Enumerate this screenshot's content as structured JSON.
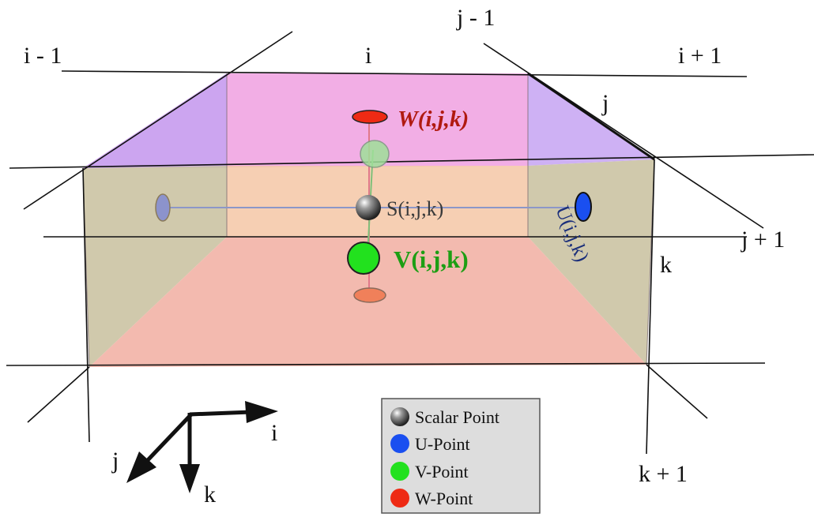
{
  "grid_labels": {
    "i_minus_1": "i - 1",
    "i": "i",
    "i_plus_1": "i + 1",
    "j_minus_1": "j - 1",
    "j": "j",
    "j_plus_1": "j + 1",
    "k": "k",
    "k_plus_1": "k + 1"
  },
  "point_labels": {
    "w": "W(i,j,k)",
    "s": "S(i,j,k)",
    "v": "V(i,j,k)",
    "u": "U(i,j,k)"
  },
  "axes": {
    "i": "i",
    "j": "j",
    "k": "k"
  },
  "legend": {
    "items": [
      {
        "label": "Scalar Point",
        "icon": "scalar-point-icon"
      },
      {
        "label": "U-Point",
        "icon": "u-point-icon",
        "color": "#1a4ff0"
      },
      {
        "label": "V-Point",
        "icon": "v-point-icon",
        "color": "#22e11e"
      },
      {
        "label": "W-Point",
        "icon": "w-point-icon",
        "color": "#ee2a14"
      }
    ]
  },
  "colors": {
    "top_face": "#f0a0e0",
    "top_side_face": "#c9a0f0",
    "back_face": "#f3c9a8",
    "side_face": "#c9c2a4",
    "bottom_face": "#f2b4a8",
    "u_point": "#1a4ff0",
    "v_point": "#22e11e",
    "w_point": "#ee2a14",
    "w_label": "#b01a10",
    "v_label": "#1d9e14",
    "u_label": "#1a2e7a",
    "s_label": "#3a3a3a"
  }
}
